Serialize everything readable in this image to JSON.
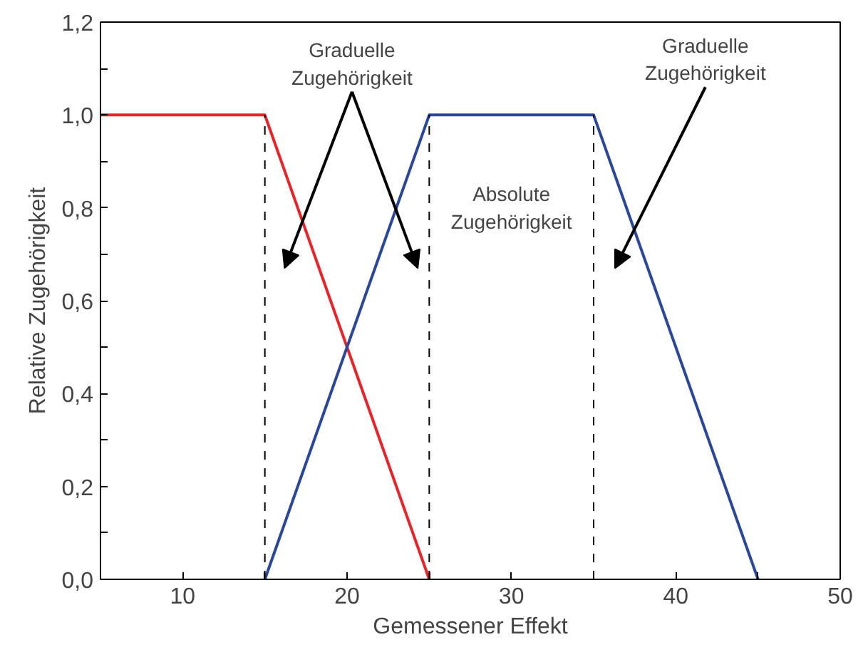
{
  "chart_data": {
    "type": "line",
    "xlabel": "Gemessener Effekt",
    "ylabel": "Relative Zugehörigkeit",
    "xlim": [
      5,
      50
    ],
    "ylim": [
      0,
      1.2
    ],
    "xticks": [
      10,
      {
        "value": 15,
        "label": null
      },
      20,
      {
        "value": 25,
        "label": null
      },
      30,
      {
        "value": 35,
        "label": null
      },
      40,
      {
        "value": 45,
        "label": null
      },
      50
    ],
    "yticks": [
      {
        "value": 0,
        "label": "0,0"
      },
      {
        "value": 0.1,
        "label": null
      },
      {
        "value": 0.2,
        "label": "0,2"
      },
      {
        "value": 0.3,
        "label": null
      },
      {
        "value": 0.4,
        "label": "0,4"
      },
      {
        "value": 0.5,
        "label": null
      },
      {
        "value": 0.6,
        "label": "0,6"
      },
      {
        "value": 0.7,
        "label": null
      },
      {
        "value": 0.8,
        "label": "0,8"
      },
      {
        "value": 0.9,
        "label": null
      },
      {
        "value": 1.0,
        "label": "1,0"
      },
      {
        "value": 1.1,
        "label": null
      },
      {
        "value": 1.2,
        "label": "1,2"
      }
    ],
    "series": [
      {
        "color": "#e8242a",
        "x": [
          5,
          15,
          25
        ],
        "values": [
          1,
          1,
          0
        ]
      },
      {
        "color": "#2a479b",
        "x": [
          15,
          25,
          35,
          45
        ],
        "values": [
          0,
          1,
          1,
          0
        ]
      }
    ],
    "ref_lines": [
      {
        "axis": "x",
        "value": 15,
        "color": "#000000",
        "line_style": "dashed"
      },
      {
        "axis": "x",
        "value": 25,
        "color": "#000000",
        "line_style": "dashed"
      },
      {
        "axis": "x",
        "value": 35,
        "color": "#000000",
        "line_style": "dashed"
      }
    ],
    "annotations": [
      "Graduelle\nZugehörigkeit",
      "Absolute\nZugehörigkeit",
      "Graduelle\nZugehörigkeit"
    ],
    "grid": false,
    "marker": "none",
    "line_style": "solid"
  }
}
